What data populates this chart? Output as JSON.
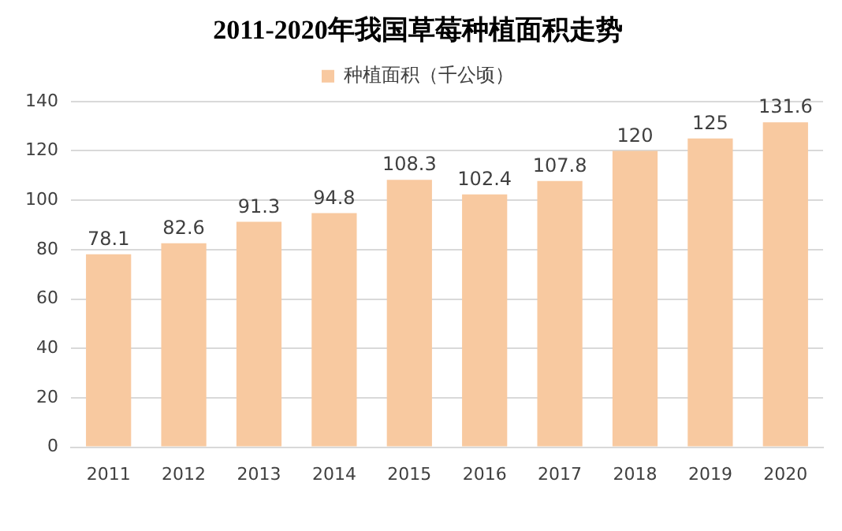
{
  "chart_data": {
    "type": "bar",
    "title": "2011-2020年我国草莓种植面积走势",
    "categories": [
      "2011",
      "2012",
      "2013",
      "2014",
      "2015",
      "2016",
      "2017",
      "2018",
      "2019",
      "2020"
    ],
    "series": [
      {
        "name": "种植面积（千公顷）",
        "color": "#f8c9a0",
        "values": [
          78.1,
          82.6,
          91.3,
          94.8,
          108.3,
          102.4,
          107.8,
          120,
          125,
          131.6
        ]
      }
    ],
    "ylim": [
      0,
      140
    ],
    "yticks": [
      0,
      20,
      40,
      60,
      80,
      100,
      120,
      140
    ],
    "grid": "y",
    "legend": "top",
    "data_labels": true
  }
}
